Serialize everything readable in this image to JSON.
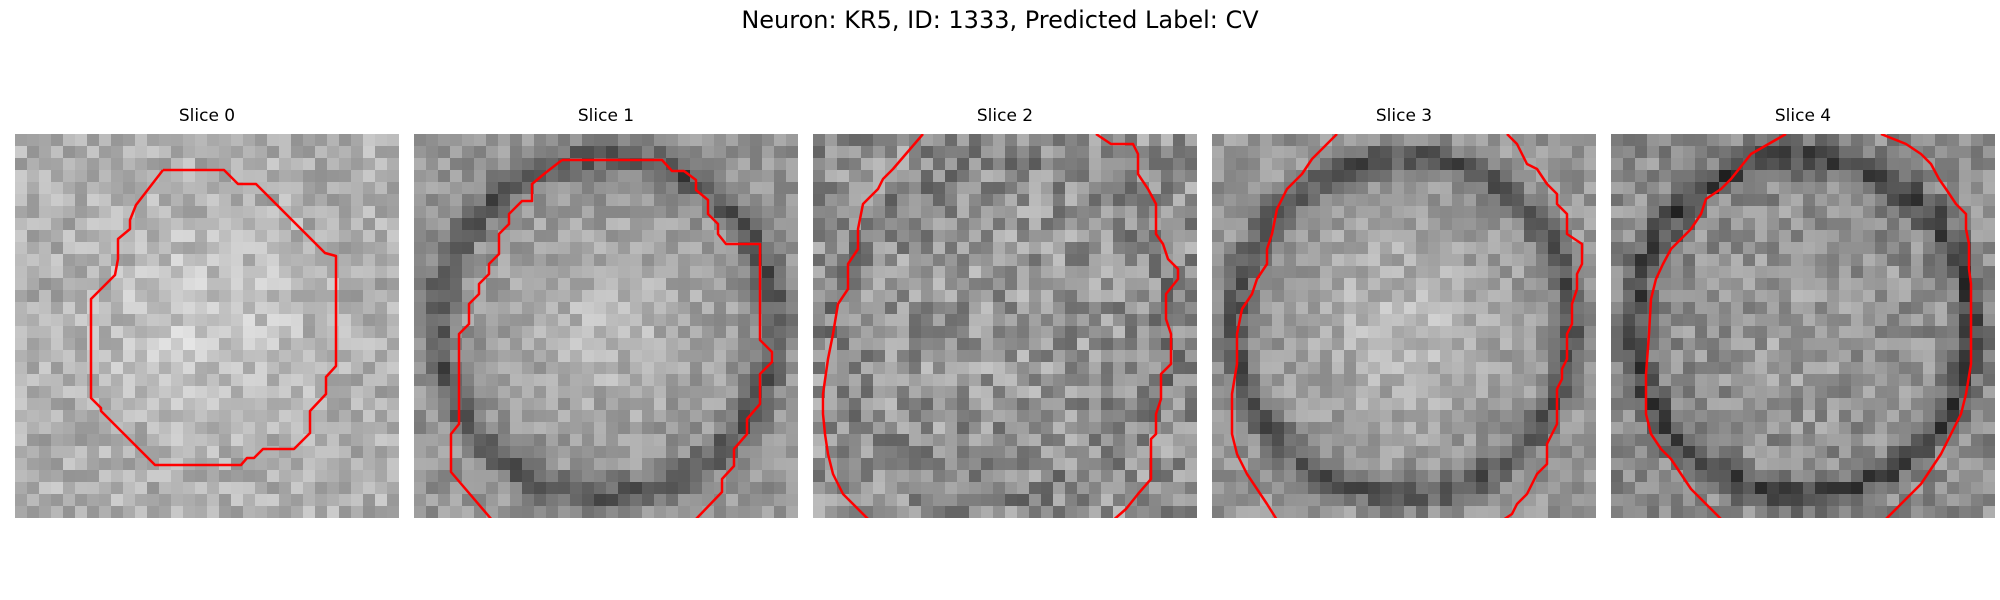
{
  "figure": {
    "title": "Neuron: KR5, ID: 1333, Predicted Label: CV",
    "contour_color": "#ff0000",
    "colormap": "gray",
    "panels": [
      {
        "title": "Slice 0",
        "seed": 11,
        "texture": "bright-centered"
      },
      {
        "title": "Slice 1",
        "seed": 23,
        "texture": "bright-centered-with-dark-rim"
      },
      {
        "title": "Slice 2",
        "seed": 37,
        "texture": "noisy-mid-gray"
      },
      {
        "title": "Slice 3",
        "seed": 41,
        "texture": "bright-centered-with-dark-rim"
      },
      {
        "title": "Slice 4",
        "seed": 53,
        "texture": "mid-gray-with-dark-rim"
      }
    ]
  }
}
